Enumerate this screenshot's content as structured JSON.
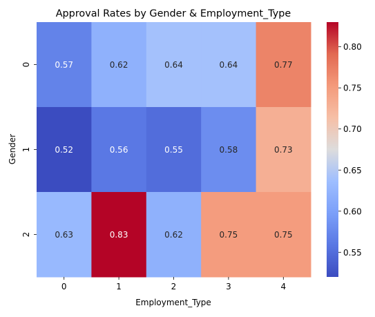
{
  "chart_data": {
    "type": "heatmap",
    "title": "Approval Rates by Gender & Employment_Type",
    "xlabel": "Employment_Type",
    "ylabel": "Gender",
    "x_categories": [
      "0",
      "1",
      "2",
      "3",
      "4"
    ],
    "y_categories": [
      "0",
      "1",
      "2"
    ],
    "values": [
      [
        0.57,
        0.62,
        0.64,
        0.64,
        0.77
      ],
      [
        0.52,
        0.56,
        0.55,
        0.58,
        0.73
      ],
      [
        0.63,
        0.83,
        0.62,
        0.75,
        0.75
      ]
    ],
    "value_labels": [
      [
        "0.57",
        "0.62",
        "0.64",
        "0.64",
        "0.77"
      ],
      [
        "0.52",
        "0.56",
        "0.55",
        "0.58",
        "0.73"
      ],
      [
        "0.63",
        "0.83",
        "0.62",
        "0.75",
        "0.75"
      ]
    ],
    "colormap": "coolwarm",
    "vmin": 0.52,
    "vmax": 0.83,
    "colorbar_ticks": [
      0.55,
      0.6,
      0.65,
      0.7,
      0.75,
      0.8
    ],
    "colorbar_tick_labels": [
      "0.55",
      "0.60",
      "0.65",
      "0.70",
      "0.75",
      "0.80"
    ]
  }
}
